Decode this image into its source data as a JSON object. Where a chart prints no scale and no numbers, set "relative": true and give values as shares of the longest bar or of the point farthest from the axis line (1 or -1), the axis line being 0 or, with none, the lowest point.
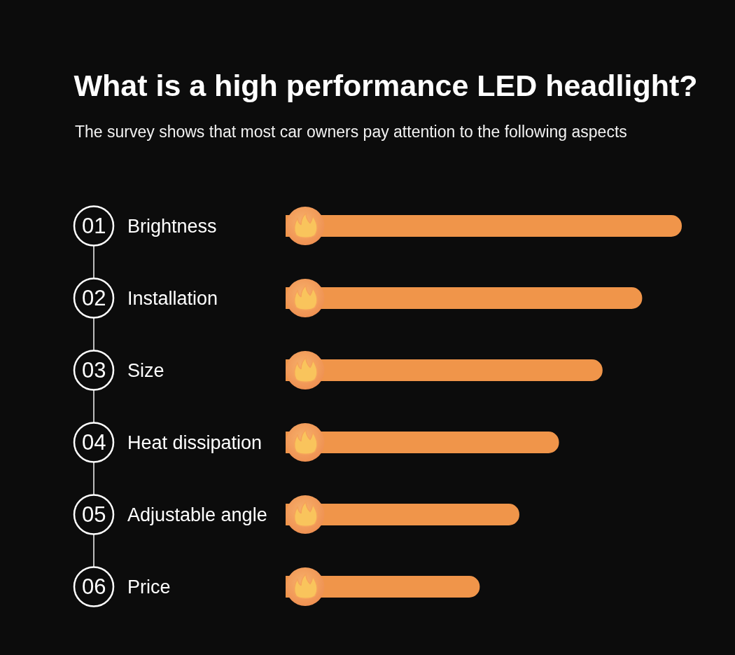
{
  "chart_data": {
    "type": "bar",
    "orientation": "horizontal",
    "relative": true,
    "title": "What is a high performance LED headlight?",
    "subtitle": "The survey shows that most car owners pay attention to the following aspects",
    "categories": [
      "Brightness",
      "Installation",
      "Size",
      "Heat dissipation",
      "Adjustable angle",
      "Price"
    ],
    "values": [
      1,
      0.9,
      0.8,
      0.69,
      0.59,
      0.49
    ],
    "color": "#f0954a",
    "annotations": [
      "01",
      "02",
      "03",
      "04",
      "05",
      "06"
    ]
  }
}
